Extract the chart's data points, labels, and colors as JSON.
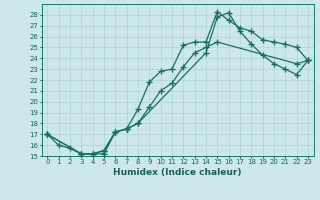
{
  "xlabel": "Humidex (Indice chaleur)",
  "background_color": "#cde8eb",
  "grid_color": "#b0d4d8",
  "line_color": "#1a6e65",
  "xlim": [
    -0.5,
    23.5
  ],
  "ylim": [
    15,
    29
  ],
  "xticks": [
    0,
    1,
    2,
    3,
    4,
    5,
    6,
    7,
    8,
    9,
    10,
    11,
    12,
    13,
    14,
    15,
    16,
    17,
    18,
    19,
    20,
    21,
    22,
    23
  ],
  "yticks": [
    15,
    16,
    17,
    18,
    19,
    20,
    21,
    22,
    23,
    24,
    25,
    26,
    27,
    28
  ],
  "line1_x": [
    0,
    1,
    2,
    3,
    4,
    5,
    6,
    7,
    8,
    9,
    10,
    11,
    12,
    13,
    14,
    15,
    16,
    17,
    18,
    19,
    20,
    21,
    22,
    23
  ],
  "line1_y": [
    17,
    16,
    15.7,
    15.2,
    15.2,
    15.2,
    17.2,
    17.5,
    19.3,
    21.8,
    22.8,
    23,
    25.2,
    25.5,
    25.5,
    28.3,
    27.5,
    26.8,
    26.5,
    25.7,
    25.5,
    25.3,
    25,
    23.8
  ],
  "line2_x": [
    0,
    3,
    4,
    5,
    6,
    7,
    8,
    14,
    15,
    16,
    17,
    18,
    19,
    20,
    21,
    22,
    23
  ],
  "line2_y": [
    17,
    15.2,
    15.2,
    15.5,
    17.2,
    17.5,
    18,
    24.5,
    27.8,
    28.2,
    26.5,
    25.3,
    24.3,
    23.5,
    23,
    22.5,
    23.8
  ],
  "line3_x": [
    0,
    3,
    4,
    5,
    6,
    7,
    8,
    9,
    10,
    11,
    12,
    13,
    14,
    15,
    22,
    23
  ],
  "line3_y": [
    17,
    15.2,
    15.2,
    15.5,
    17.2,
    17.5,
    18,
    19.5,
    21,
    21.7,
    23.2,
    24.5,
    25,
    25.5,
    23.5,
    23.8
  ]
}
